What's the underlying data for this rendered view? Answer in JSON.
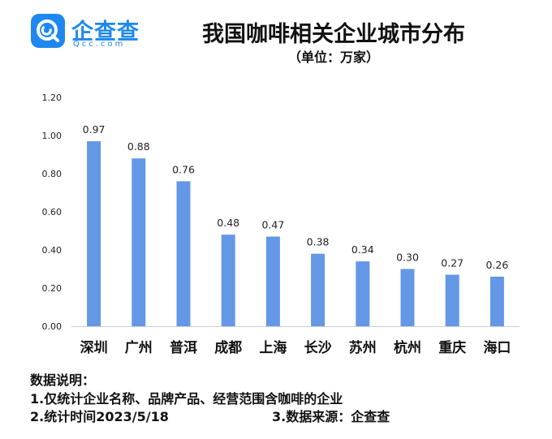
{
  "brand": {
    "name": "企查查",
    "domain": "Qcc.com",
    "color": "#1e88f0"
  },
  "chart_data": {
    "type": "bar",
    "title": "我国咖啡相关企业城市分布",
    "subtitle": "（单位：万家）",
    "categories": [
      "深圳",
      "广州",
      "普洱",
      "成都",
      "上海",
      "长沙",
      "苏州",
      "杭州",
      "重庆",
      "海口"
    ],
    "values": [
      0.97,
      0.88,
      0.76,
      0.48,
      0.47,
      0.38,
      0.34,
      0.3,
      0.27,
      0.26
    ],
    "value_labels": [
      "0.97",
      "0.88",
      "0.76",
      "0.48",
      "0.47",
      "0.38",
      "0.34",
      "0.30",
      "0.27",
      "0.26"
    ],
    "yticks": [
      "0.00",
      "0.20",
      "0.40",
      "0.60",
      "0.80",
      "1.00",
      "1.20"
    ],
    "ylim": [
      0,
      1.2
    ],
    "xlabel": "",
    "ylabel": "",
    "bar_color": "#6498e6",
    "grid": false,
    "legend": "none"
  },
  "notes": {
    "heading": "数据说明：",
    "line1": "1.仅统计企业名称、品牌产品、经营范围含咖啡的企业",
    "line2_left": "2.统计时间2023/5/18",
    "line2_right": "3.数据来源：企查查"
  }
}
